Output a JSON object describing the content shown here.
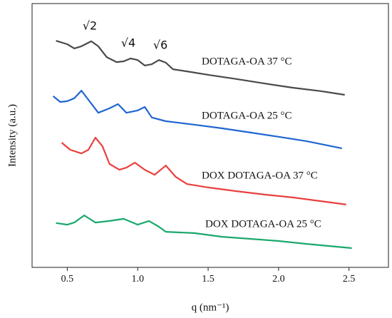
{
  "chart_data": {
    "type": "line",
    "xlabel": "q (nm⁻¹)",
    "ylabel": "Intensity (a.u.)",
    "xlim": [
      0.25,
      2.78
    ],
    "xticks": [
      0.5,
      {
        "value": 1,
        "label": "1.0"
      },
      1.5,
      {
        "value": 2,
        "label": "2.0"
      },
      2.5
    ],
    "ylim": [
      0,
      100
    ],
    "annotations": [
      "√2",
      "√4",
      "√6"
    ],
    "series": [
      {
        "name": "DOTAGA-OA 37 °C",
        "color": "#4a4a4a",
        "x": [
          0.42,
          0.5,
          0.55,
          0.6,
          0.67,
          0.72,
          0.78,
          0.85,
          0.9,
          0.95,
          1.0,
          1.05,
          1.1,
          1.15,
          1.2,
          1.25,
          1.35,
          1.5,
          1.7,
          1.9,
          2.1,
          2.3,
          2.47
        ],
        "values": [
          85.9,
          84.6,
          83.0,
          83.8,
          85.7,
          83.8,
          79.7,
          77.8,
          78.1,
          79.2,
          78.6,
          76.5,
          77.0,
          78.6,
          77.6,
          75.1,
          74.3,
          73.0,
          71.4,
          69.7,
          68.1,
          66.8,
          65.4
        ]
      },
      {
        "name": "DOTAGA-OA 25 °C",
        "color": "#1f66d1",
        "x": [
          0.4,
          0.45,
          0.5,
          0.55,
          0.6,
          0.65,
          0.72,
          0.8,
          0.86,
          0.92,
          1.0,
          1.05,
          1.1,
          1.2,
          1.4,
          1.6,
          1.8,
          2.0,
          2.2,
          2.45
        ],
        "values": [
          64.9,
          62.7,
          63.0,
          64.1,
          67.0,
          63.5,
          58.6,
          60.3,
          61.9,
          58.6,
          59.5,
          60.8,
          56.8,
          55.4,
          54.1,
          52.7,
          51.1,
          49.5,
          47.8,
          45.1
        ]
      },
      {
        "name": "DOX DOTAGA-OA 37 °C",
        "color": "#e8403f",
        "x": [
          0.46,
          0.52,
          0.6,
          0.65,
          0.7,
          0.75,
          0.8,
          0.87,
          0.92,
          0.98,
          1.05,
          1.12,
          1.2,
          1.27,
          1.35,
          1.5,
          1.7,
          1.9,
          2.1,
          2.3,
          2.48
        ],
        "values": [
          47.3,
          44.6,
          43.2,
          44.6,
          49.2,
          45.9,
          39.2,
          37.0,
          37.8,
          39.7,
          37.0,
          35.1,
          38.6,
          34.3,
          31.6,
          30.3,
          28.9,
          27.6,
          26.5,
          25.1,
          23.8
        ]
      },
      {
        "name": "DOX DOTAGA-OA 25 °C",
        "color": "#1aa86b",
        "x": [
          0.42,
          0.5,
          0.55,
          0.62,
          0.7,
          0.8,
          0.9,
          1.0,
          1.08,
          1.15,
          1.2,
          1.4,
          1.6,
          1.8,
          2.0,
          2.2,
          2.52
        ],
        "values": [
          16.8,
          16.2,
          17.0,
          19.7,
          17.0,
          17.6,
          18.4,
          16.2,
          17.6,
          15.4,
          13.5,
          13.0,
          11.6,
          10.8,
          10.0,
          8.9,
          7.3
        ]
      }
    ]
  }
}
